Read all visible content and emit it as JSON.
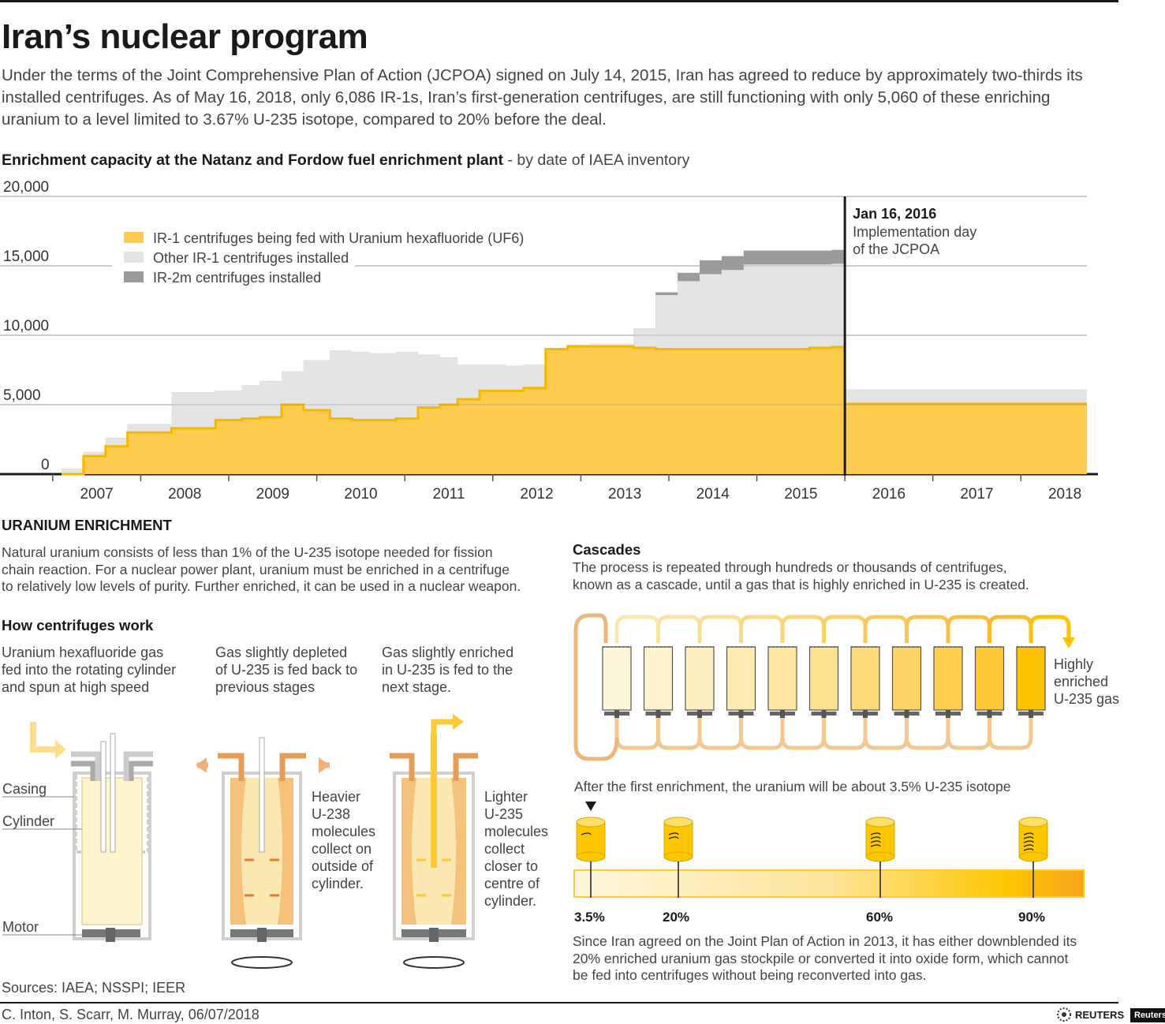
{
  "header": {
    "title": "Iran’s nuclear program",
    "intro": "Under the terms of the Joint Comprehensive Plan of Action (JCPOA) signed on July 14, 2015, Iran has agreed to reduce by approximately two-thirds its installed centrifuges. As of May 16, 2018, only 6,086 IR-1s, Iran’s first-generation centrifuges, are still functioning with only 5,060 of these enriching uranium to a level limited to 3.67% U-235 isotope, compared to 20% before the deal."
  },
  "chart_heading": {
    "bold": "Enrichment capacity at the Natanz and Fordow fuel enrichment plant",
    "rest": " - by date of IAEA inventory"
  },
  "chart_data": {
    "type": "area",
    "title": "Enrichment capacity at the Natanz and Fordow fuel enrichment plant",
    "subtitle": "- by date of IAEA inventory",
    "ylim": [
      0,
      20000
    ],
    "y_ticks": [
      "20,000",
      "15,000",
      "10,000",
      "5,000",
      "0"
    ],
    "x_ticks": [
      "2007",
      "2008",
      "2009",
      "2010",
      "2011",
      "2012",
      "2013",
      "2014",
      "2015",
      "2016",
      "2017",
      "2018"
    ],
    "xlim": [
      2006.6,
      2018.25
    ],
    "grid": true,
    "legend_position": "top-left",
    "annotation": {
      "x": 2015.5,
      "title": "Jan 16, 2016",
      "line1": "Implementation day",
      "line2": "of the JCPOA"
    },
    "dates": [
      2006.6,
      2006.85,
      2007.1,
      2007.35,
      2007.85,
      2008.35,
      2008.65,
      2008.85,
      2009.1,
      2009.35,
      2009.65,
      2009.9,
      2010.1,
      2010.4,
      2010.65,
      2010.9,
      2011.1,
      2011.35,
      2011.65,
      2011.85,
      2012.1,
      2012.35,
      2012.6,
      2012.85,
      2013.1,
      2013.35,
      2013.6,
      2013.85,
      2014.1,
      2014.35,
      2014.6,
      2014.85,
      2015.1,
      2015.35,
      2015.5,
      2018.25
    ],
    "series": [
      {
        "name": "IR-1 centrifuges being fed with Uranium hexafluoride (UF6)",
        "color": "#fdcb4e",
        "values": [
          0,
          1300,
          2000,
          3000,
          3300,
          3900,
          4000,
          4100,
          5000,
          4600,
          4000,
          3900,
          3900,
          4000,
          4800,
          5000,
          5400,
          6000,
          6000,
          6200,
          9000,
          9200,
          9200,
          9200,
          9100,
          9000,
          9000,
          9000,
          9000,
          9000,
          9000,
          9000,
          9100,
          9150,
          5060,
          5060
        ]
      },
      {
        "name": "Other IR-1 centrifuges installed",
        "color": "#e3e4e5",
        "values": [
          400,
          300,
          600,
          600,
          2600,
          2100,
          2400,
          2600,
          2400,
          3600,
          4900,
          4900,
          4800,
          4800,
          3800,
          3400,
          2500,
          1900,
          1800,
          1700,
          0,
          100,
          200,
          200,
          1400,
          3900,
          4900,
          5400,
          5700,
          6100,
          6100,
          6100,
          6000,
          6000,
          1026,
          1026
        ]
      },
      {
        "name": "IR-2m centrifuges installed",
        "color": "#9b9b9b",
        "values": [
          0,
          0,
          0,
          0,
          0,
          0,
          0,
          0,
          0,
          0,
          0,
          0,
          0,
          0,
          0,
          0,
          0,
          0,
          0,
          0,
          0,
          0,
          0,
          0,
          0,
          200,
          600,
          1000,
          1000,
          1000,
          1000,
          1000,
          1000,
          1000,
          0,
          0
        ]
      }
    ]
  },
  "enrichment": {
    "heading": "URANIUM ENRICHMENT",
    "text_lines": [
      "Natural uranium consists of less than 1% of the U-235 isotope needed for fission",
      "chain reaction. For a nuclear power plant, uranium must be enriched in a centrifuge",
      "to relatively low levels of purity. Further enriched, it can be used in a nuclear weapon."
    ]
  },
  "centrifuges": {
    "heading": "How centrifuges work",
    "step1": [
      "Uranium hexafluoride gas",
      "fed into the rotating cylinder",
      "and spun at high speed"
    ],
    "step2": [
      "Gas slightly depleted",
      "of U-235 is fed back to",
      "previous stages"
    ],
    "step3": [
      "Gas slightly enriched",
      "in U-235 is fed to the",
      "next stage."
    ],
    "labels": {
      "casing": "Casing",
      "cylinder": "Cylinder",
      "motor": "Motor"
    },
    "heavier": [
      "Heavier",
      "U-238",
      "molecules",
      "collect on",
      "outside of",
      "cylinder."
    ],
    "lighter": [
      "Lighter",
      "U-235",
      "molecules",
      "collect",
      "closer to",
      "centre of",
      "cylinder."
    ]
  },
  "cascades": {
    "heading": "Cascades",
    "text_lines": [
      "The process is repeated through hundreds or thousands of centrifuges,",
      "known as a cascade, until a gas that is highly enriched in U-235 is created."
    ],
    "output_label": [
      "Highly",
      "enriched",
      "U-235 gas"
    ],
    "first_enrichment": "After the first enrichment, the uranium will be about 3.5% U-235 isotope",
    "levels": [
      "3.5%",
      "20%",
      "60%",
      "90%"
    ],
    "note_lines": [
      "Since Iran agreed on the Joint Plan of Action in 2013, it has either downblended its",
      "20% enriched uranium gas stockpile or converted it into oxide form, which cannot",
      "be fed into centrifuges without being reconverted into gas."
    ]
  },
  "footer": {
    "sources": "Sources: IAEA; NSSPI; IEER",
    "credit": "C. Inton, S. Scarr, M. Murray, 06/07/2018",
    "logo": "REUTERS",
    "badge": "Reuters"
  }
}
